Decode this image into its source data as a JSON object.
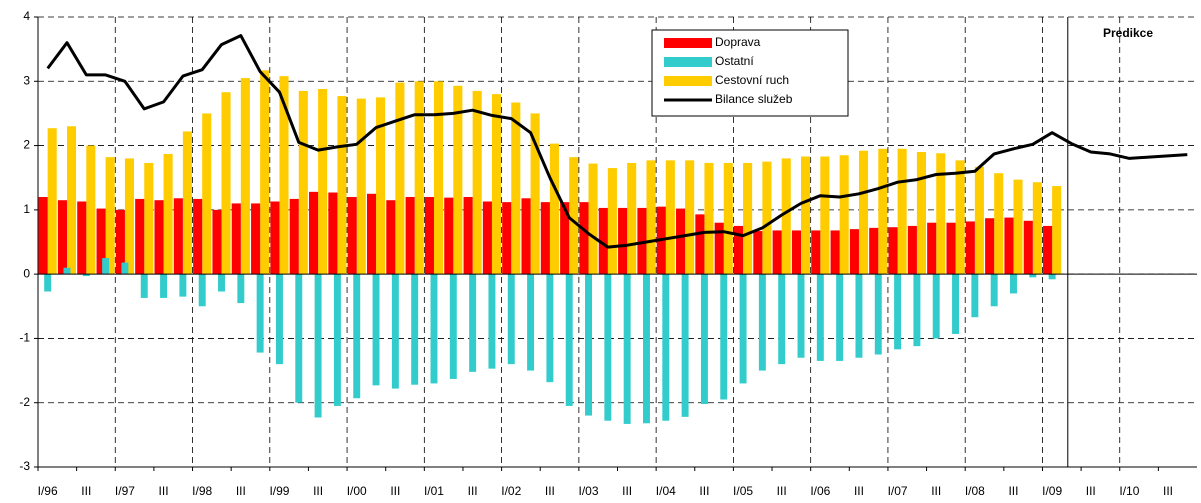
{
  "chart_data": {
    "type": "bar",
    "annotation": "Predikce",
    "categories": [
      "I/96",
      null,
      "III",
      null,
      "I/97",
      null,
      "III",
      null,
      "I/98",
      null,
      "III",
      null,
      "I/99",
      null,
      "III",
      null,
      "I/00",
      null,
      "III",
      null,
      "I/01",
      null,
      "III",
      null,
      "I/02",
      null,
      "III",
      null,
      "I/03",
      null,
      "III",
      null,
      "I/04",
      null,
      "III",
      null,
      "I/05",
      null,
      "III",
      null,
      "I/06",
      null,
      "III",
      null,
      "I/07",
      null,
      "III",
      null,
      "I/08",
      null,
      "III",
      null,
      "I/09",
      null,
      "III",
      null,
      "I/10",
      null,
      "III",
      null
    ],
    "series": [
      {
        "name": "Doprava",
        "color": "#ff0000",
        "type": "bar",
        "values": [
          1.2,
          1.15,
          1.13,
          1.02,
          1.0,
          1.17,
          1.15,
          1.18,
          1.17,
          1.0,
          1.1,
          1.1,
          1.13,
          1.17,
          1.28,
          1.27,
          1.2,
          1.25,
          1.15,
          1.2,
          1.2,
          1.19,
          1.2,
          1.13,
          1.12,
          1.18,
          1.12,
          1.12,
          1.12,
          1.03,
          1.03,
          1.03,
          1.05,
          1.02,
          0.93,
          0.8,
          0.75,
          0.67,
          0.68,
          0.68,
          0.68,
          0.68,
          0.7,
          0.72,
          0.73,
          0.75,
          0.8,
          0.8,
          0.82,
          0.87,
          0.88,
          0.83,
          0.75,
          null,
          null,
          null,
          null,
          null,
          null,
          null
        ]
      },
      {
        "name": "Ostatní",
        "color": "#33cccc",
        "type": "bar",
        "values": [
          -0.27,
          0.1,
          -0.03,
          0.25,
          0.18,
          -0.37,
          -0.37,
          -0.35,
          -0.5,
          -0.27,
          -0.45,
          -1.22,
          -1.4,
          -2.0,
          -2.23,
          -2.05,
          -1.93,
          -1.73,
          -1.78,
          -1.72,
          -1.7,
          -1.63,
          -1.52,
          -1.47,
          -1.4,
          -1.5,
          -1.68,
          -2.05,
          -2.2,
          -2.28,
          -2.33,
          -2.32,
          -2.28,
          -2.22,
          -2.02,
          -1.95,
          -1.7,
          -1.5,
          -1.4,
          -1.3,
          -1.35,
          -1.35,
          -1.3,
          -1.25,
          -1.17,
          -1.12,
          -1.0,
          -0.93,
          -0.67,
          -0.5,
          -0.3,
          -0.05,
          -0.08,
          null,
          null,
          null,
          null,
          null,
          null,
          null
        ]
      },
      {
        "name": "Cestovní ruch",
        "color": "#ffcc00",
        "type": "bar",
        "values": [
          2.27,
          2.3,
          2.0,
          1.82,
          1.8,
          1.73,
          1.87,
          2.22,
          2.5,
          2.83,
          3.05,
          3.17,
          3.08,
          2.85,
          2.88,
          2.77,
          2.73,
          2.75,
          2.98,
          3.0,
          3.0,
          2.93,
          2.85,
          2.8,
          2.67,
          2.5,
          2.03,
          1.82,
          1.72,
          1.65,
          1.73,
          1.77,
          1.77,
          1.77,
          1.73,
          1.73,
          1.73,
          1.75,
          1.8,
          1.83,
          1.83,
          1.85,
          1.92,
          1.95,
          1.95,
          1.9,
          1.88,
          1.77,
          1.67,
          1.57,
          1.47,
          1.43,
          1.37,
          null,
          null,
          null,
          null,
          null,
          null,
          null
        ]
      },
      {
        "name": "Bilance služeb",
        "color": "#000000",
        "type": "line",
        "values": [
          3.2,
          3.6,
          3.1,
          3.1,
          3.0,
          2.57,
          2.68,
          3.08,
          3.18,
          3.57,
          3.71,
          3.15,
          2.83,
          2.05,
          1.93,
          1.98,
          2.02,
          2.28,
          2.38,
          2.48,
          2.48,
          2.5,
          2.55,
          2.47,
          2.42,
          2.2,
          1.5,
          0.88,
          0.63,
          0.42,
          0.45,
          0.5,
          0.55,
          0.6,
          0.65,
          0.66,
          0.6,
          0.72,
          0.92,
          1.1,
          1.22,
          1.2,
          1.25,
          1.33,
          1.43,
          1.47,
          1.55,
          1.57,
          1.6,
          1.87,
          1.95,
          2.02,
          2.2,
          2.03,
          1.9,
          1.87,
          1.8,
          1.82,
          1.84,
          1.86
        ]
      }
    ],
    "ylim": [
      -3,
      4
    ],
    "yticks": [
      -3,
      -2,
      -1,
      0,
      1,
      2,
      3,
      4
    ],
    "grid": true,
    "legend": "top"
  }
}
